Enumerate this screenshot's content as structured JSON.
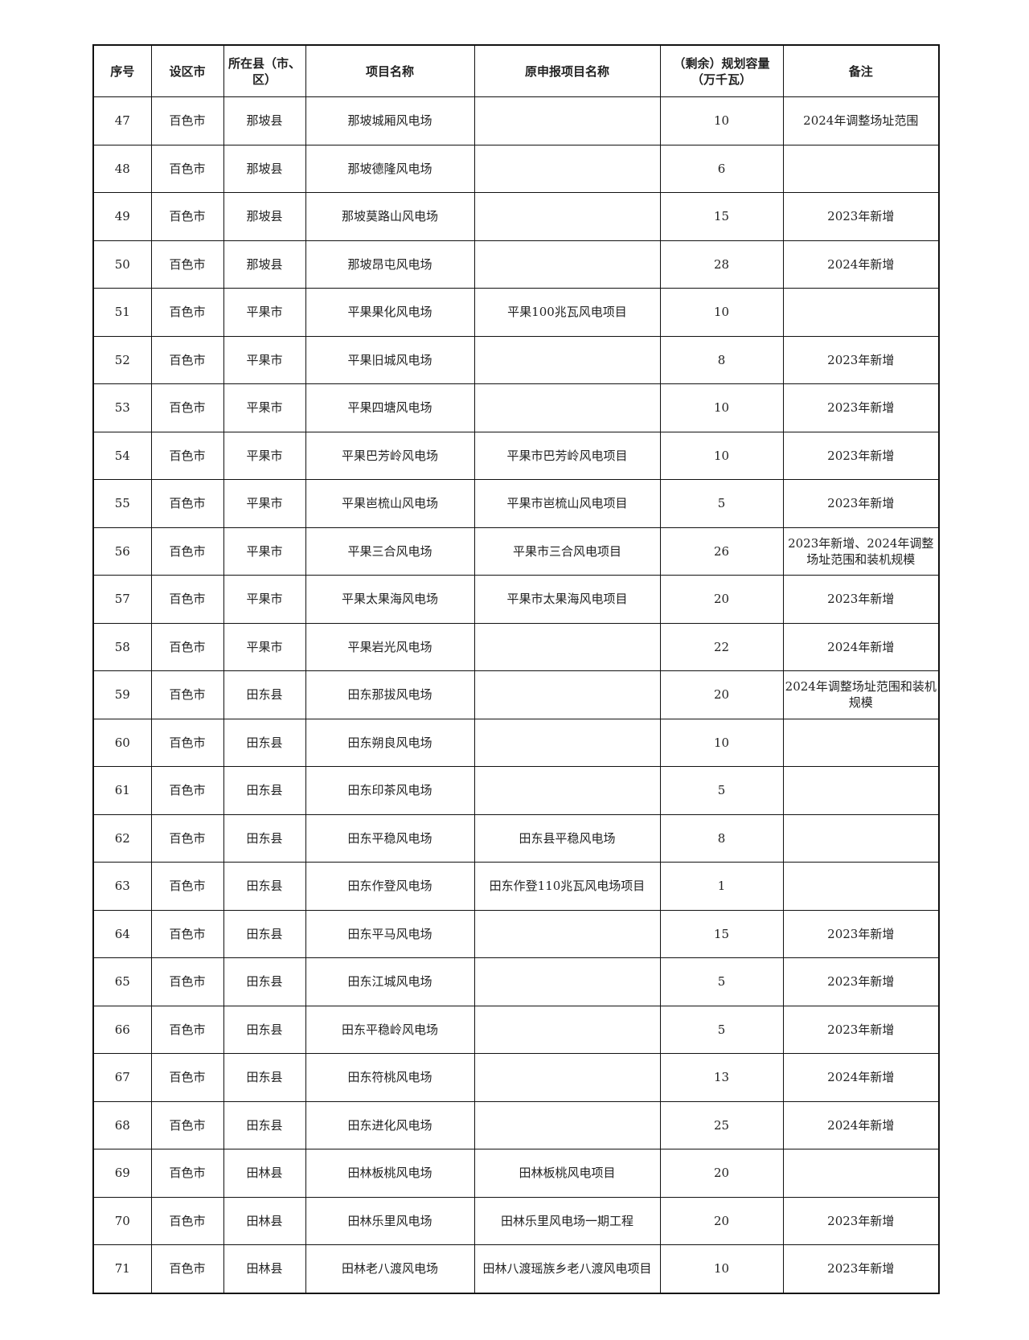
{
  "headers": [
    "序号",
    "设区市",
    "所在县（市、区）",
    "项目名称",
    "原申报项目名称",
    "（剩余）规划容量（万千瓦）",
    "备注"
  ],
  "rows": [
    [
      "47",
      "百色市",
      "那坡县",
      "那坡城厢风电场",
      "",
      "10",
      "2024年调整场址范围"
    ],
    [
      "48",
      "百色市",
      "那坡县",
      "那坡德隆风电场",
      "",
      "6",
      ""
    ],
    [
      "49",
      "百色市",
      "那坡县",
      "那坡莫路山风电场",
      "",
      "15",
      "2023年新增"
    ],
    [
      "50",
      "百色市",
      "那坡县",
      "那坡昂屯风电场",
      "",
      "28",
      "2024年新增"
    ],
    [
      "51",
      "百色市",
      "平果市",
      "平果果化风电场",
      "平果100兆瓦风电项目",
      "10",
      ""
    ],
    [
      "52",
      "百色市",
      "平果市",
      "平果旧城风电场",
      "",
      "8",
      "2023年新增"
    ],
    [
      "53",
      "百色市",
      "平果市",
      "平果四塘风电场",
      "",
      "10",
      "2023年新增"
    ],
    [
      "54",
      "百色市",
      "平果市",
      "平果巴芳岭风电场",
      "平果市巴芳岭风电项目",
      "10",
      "2023年新增"
    ],
    [
      "55",
      "百色市",
      "平果市",
      "平果岜梳山风电场",
      "平果市岜梳山风电项目",
      "5",
      "2023年新增"
    ],
    [
      "56",
      "百色市",
      "平果市",
      "平果三合风电场",
      "平果市三合风电项目",
      "26",
      "2023年新增、2024年调整场址范围和装机规模"
    ],
    [
      "57",
      "百色市",
      "平果市",
      "平果太果海风电场",
      "平果市太果海风电项目",
      "20",
      "2023年新增"
    ],
    [
      "58",
      "百色市",
      "平果市",
      "平果岩光风电场",
      "",
      "22",
      "2024年新增"
    ],
    [
      "59",
      "百色市",
      "田东县",
      "田东那拔风电场",
      "",
      "20",
      "2024年调整场址范围和装机规模"
    ],
    [
      "60",
      "百色市",
      "田东县",
      "田东朔良风电场",
      "",
      "10",
      ""
    ],
    [
      "61",
      "百色市",
      "田东县",
      "田东印茶风电场",
      "",
      "5",
      ""
    ],
    [
      "62",
      "百色市",
      "田东县",
      "田东平稳风电场",
      "田东县平稳风电场",
      "8",
      ""
    ],
    [
      "63",
      "百色市",
      "田东县",
      "田东作登风电场",
      "田东作登110兆瓦风电场项目",
      "1",
      ""
    ],
    [
      "64",
      "百色市",
      "田东县",
      "田东平马风电场",
      "",
      "15",
      "2023年新增"
    ],
    [
      "65",
      "百色市",
      "田东县",
      "田东江城风电场",
      "",
      "5",
      "2023年新增"
    ],
    [
      "66",
      "百色市",
      "田东县",
      "田东平稳岭风电场",
      "",
      "5",
      "2023年新增"
    ],
    [
      "67",
      "百色市",
      "田东县",
      "田东符桃风电场",
      "",
      "13",
      "2024年新增"
    ],
    [
      "68",
      "百色市",
      "田东县",
      "田东进化风电场",
      "",
      "25",
      "2024年新增"
    ],
    [
      "69",
      "百色市",
      "田林县",
      "田林板桃风电场",
      "田林板桃风电项目",
      "20",
      ""
    ],
    [
      "70",
      "百色市",
      "田林县",
      "田林乐里风电场",
      "田林乐里风电场一期工程",
      "20",
      "2023年新增"
    ],
    [
      "71",
      "百色市",
      "田林县",
      "田林老八渡风电场",
      "田林八渡瑶族乡老八渡风电项目",
      "10",
      "2023年新增"
    ]
  ]
}
